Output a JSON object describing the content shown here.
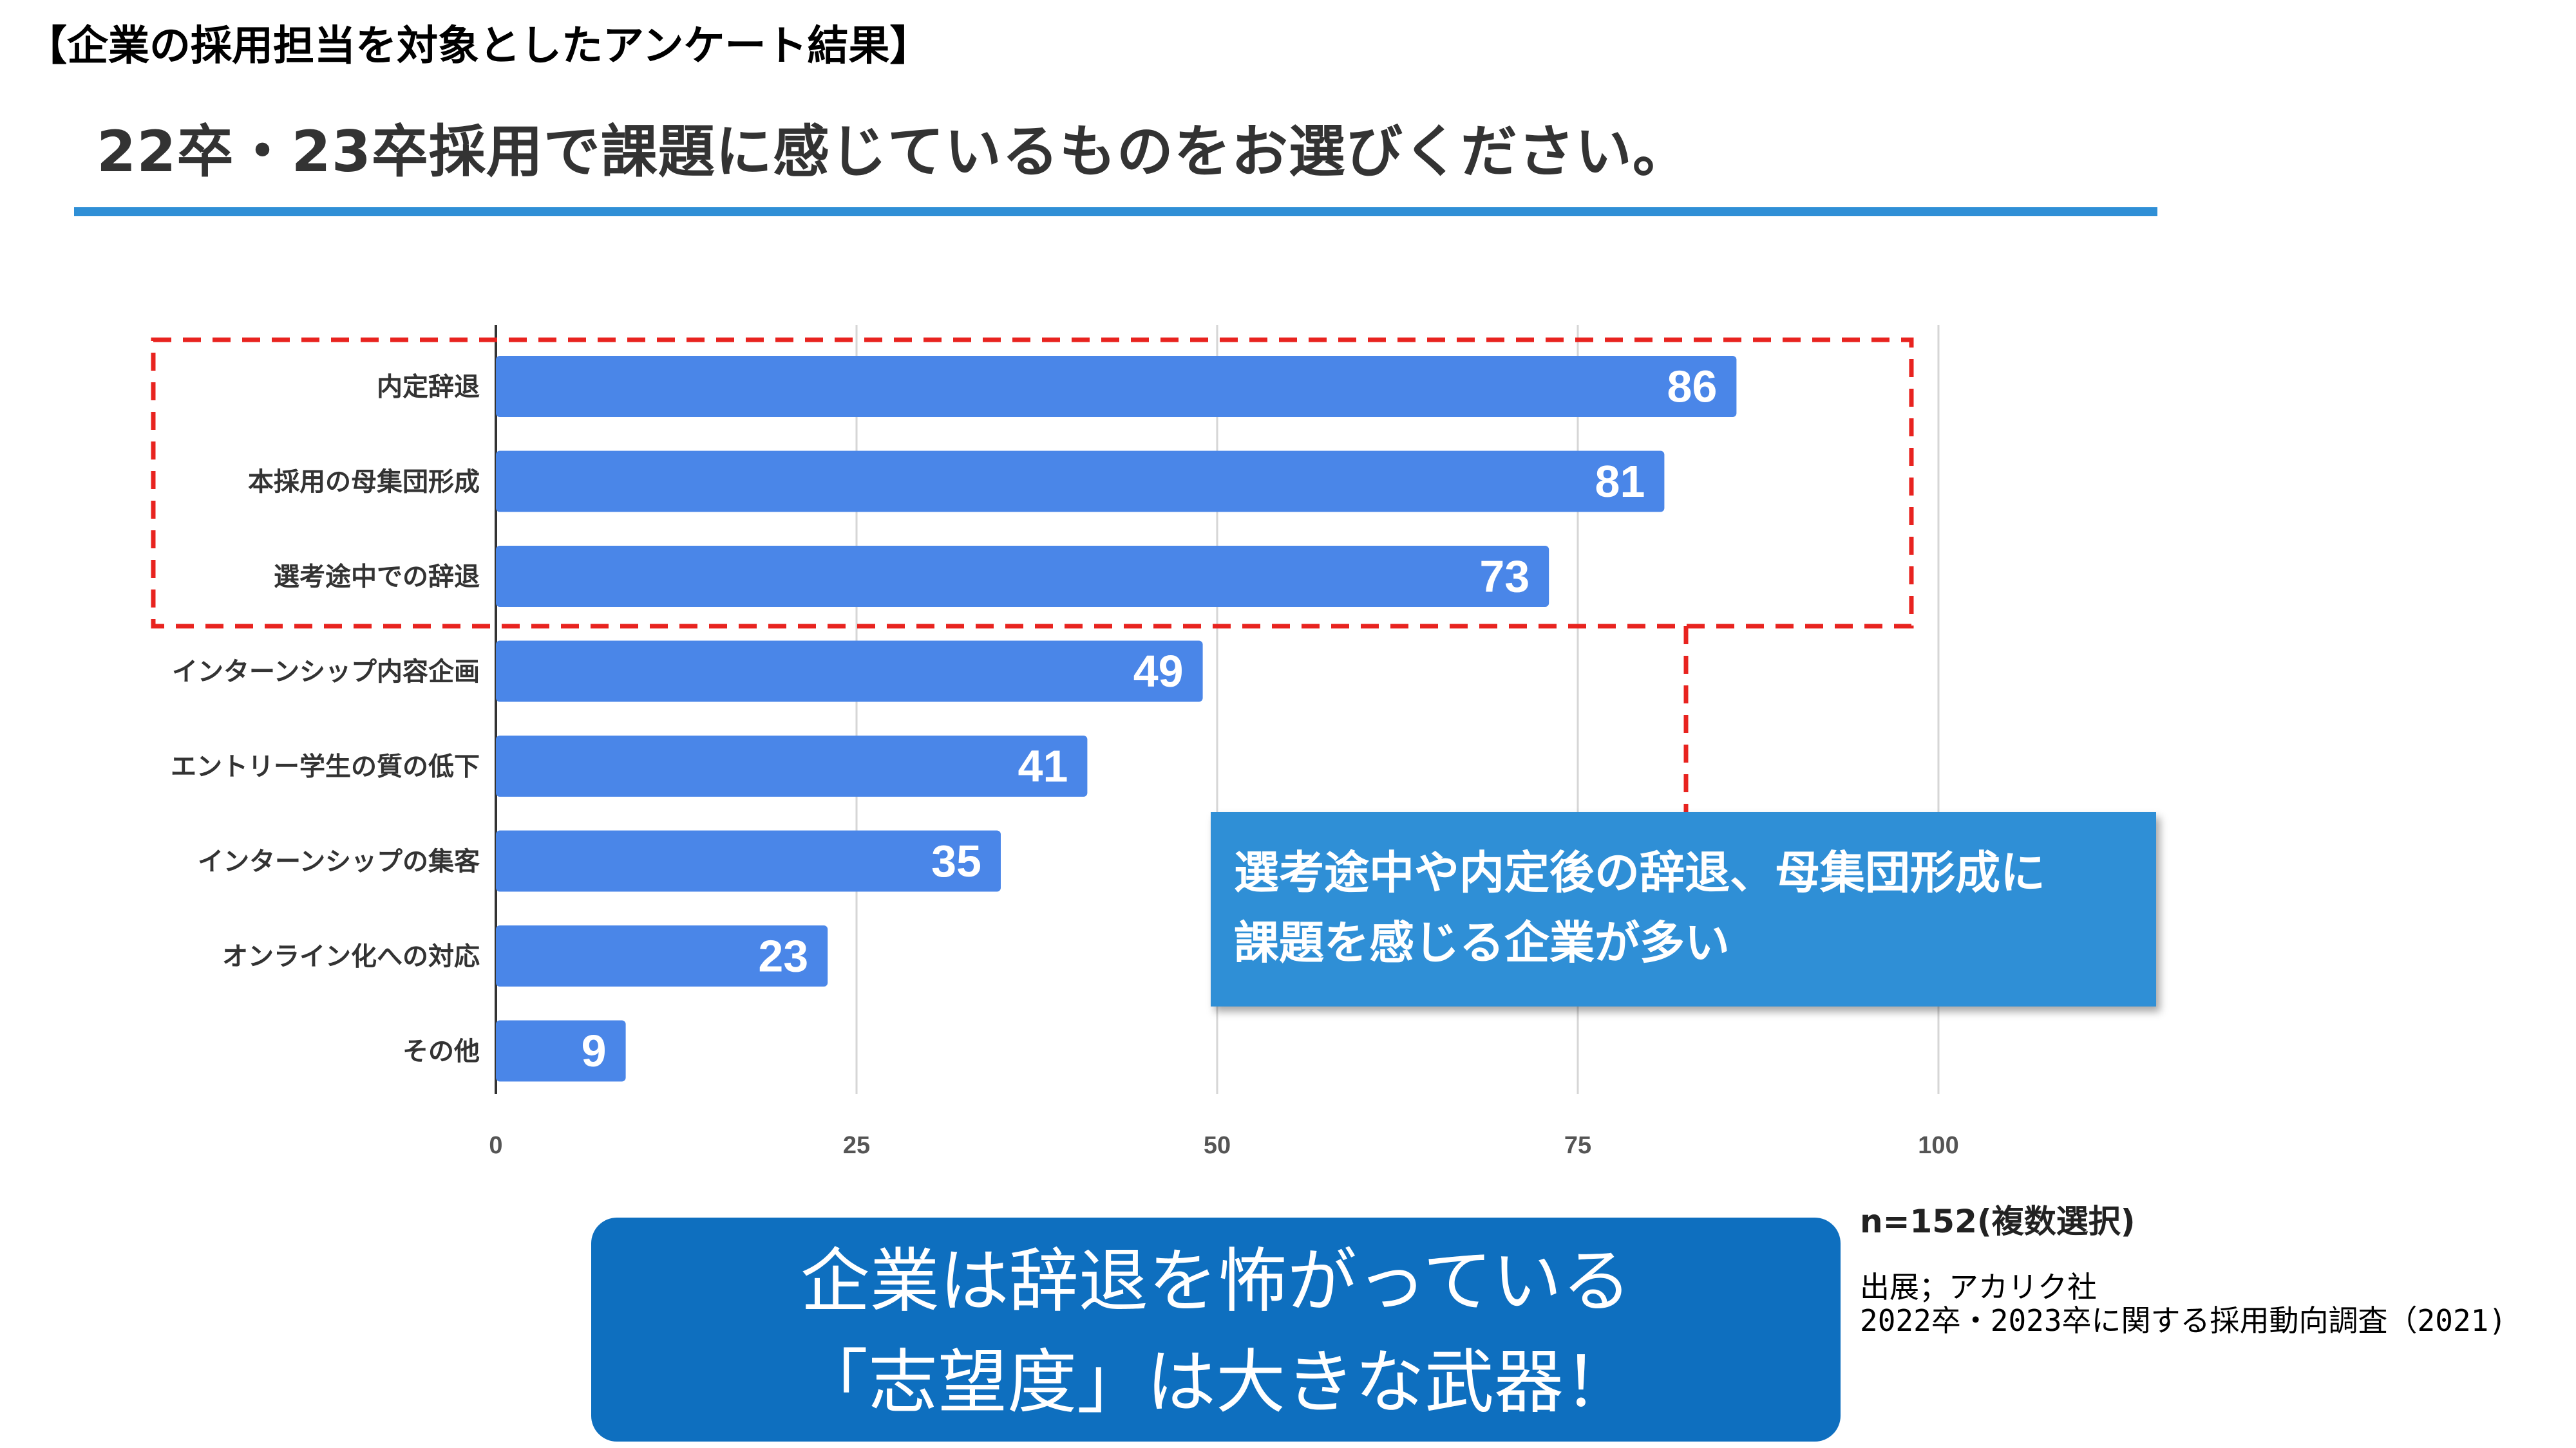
{
  "header": {
    "label": "【企業の採用担当を対象としたアンケート結果】"
  },
  "chart_data": {
    "type": "bar",
    "orientation": "horizontal",
    "title": "22卒・23卒採用で課題に感じているものをお選びください。",
    "categories": [
      "内定辞退",
      "本採用の母集団形成",
      "選考途中での辞退",
      "インターンシップ内容企画",
      "エントリー学生の質の低下",
      "インターンシップの集客",
      "オンライン化への対応",
      "その他"
    ],
    "values": [
      86,
      81,
      73,
      49,
      41,
      35,
      23,
      9
    ],
    "xlim": [
      0,
      100
    ],
    "xticks": [
      0,
      25,
      50,
      75,
      100
    ],
    "grid": "vertical",
    "bar_color": "#4a86e8",
    "highlight_categories": [
      "内定辞退",
      "本採用の母集団形成",
      "選考途中での辞退"
    ],
    "highlight_color": "#e8231f"
  },
  "callout": {
    "line1": "選考途中や内定後の辞退、母集団形成に",
    "line2": "課題を感じる企業が多い"
  },
  "sample_note": "n=152(複数選択)",
  "source": {
    "line1": "出展；アカリク社",
    "line2": "2022卒・2023卒に関する採用動向調査（2021)"
  },
  "takeaway": {
    "line1": "企業は辞退を怖がっている",
    "line2": "「志望度」は大きな武器！"
  }
}
